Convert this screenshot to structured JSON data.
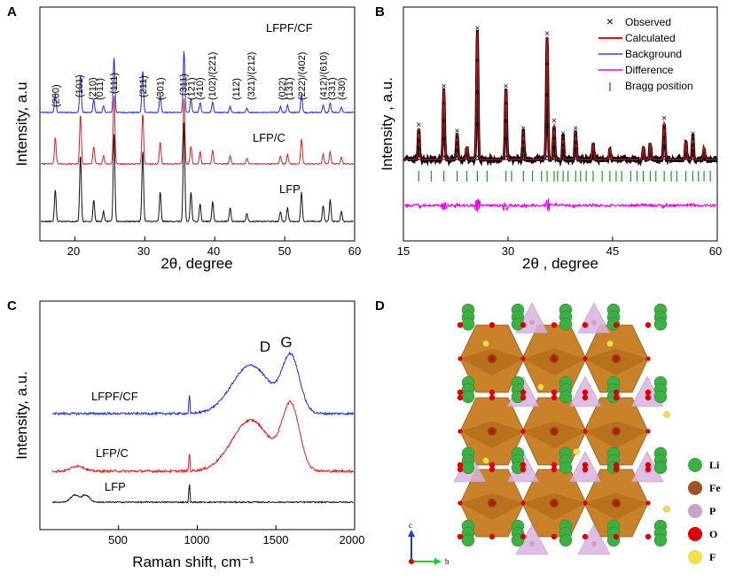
{
  "panel_labels": [
    "A",
    "B",
    "C",
    "D"
  ],
  "panelA": {
    "xlabel": "2θ, degree",
    "ylabel": "Intensity, a.u",
    "xticks": [
      "20",
      "30",
      "40",
      "50",
      "60"
    ],
    "sample_labels": [
      "LFPF/CF",
      "LFP/C",
      "LFP"
    ],
    "hkl_labels": [
      "(200)",
      "(101)",
      "(210)",
      "(011)",
      "(111)",
      "(211)",
      "(301)",
      "(311)",
      "(121)",
      "(410)",
      "(102)/(221)",
      "(112)",
      "(321)/(212)",
      "(022)",
      "(131)",
      "(222)/(402)",
      "(412)/(610)",
      "(331)",
      "(430)"
    ]
  },
  "panelB": {
    "xlabel": "2θ , degree",
    "ylabel": "Intensity , a.u.",
    "xticks": [
      "15",
      "30",
      "45",
      "60"
    ],
    "legend": [
      {
        "symbol": "×",
        "label": "Observed"
      },
      {
        "symbol": "line",
        "label": "Calculated"
      },
      {
        "symbol": "line",
        "label": "Background"
      },
      {
        "symbol": "line",
        "label": "Difference"
      },
      {
        "symbol": "bar",
        "label": "Bragg position"
      }
    ]
  },
  "panelC": {
    "xlabel": "Raman shift, cm⁻¹",
    "ylabel": "Intensity, a.u.",
    "xticks": [
      "500",
      "1000",
      "1500",
      "2000"
    ],
    "sample_labels": [
      "LFPF/CF",
      "LFP/C",
      "LFP"
    ],
    "band_labels": [
      "D",
      "G"
    ]
  },
  "panelD": {
    "atoms": [
      {
        "symbol": "Li",
        "color": "#3cb043"
      },
      {
        "symbol": "Fe",
        "color": "#a0522d"
      },
      {
        "symbol": "P",
        "color": "#c8a2c8"
      },
      {
        "symbol": "O",
        "color": "#dd0000"
      },
      {
        "symbol": "F",
        "color": "#f2e04b"
      }
    ],
    "axis_labels": [
      "c",
      "b"
    ]
  },
  "colors": {
    "blue": "#1f2de0",
    "red": "#e21f1f",
    "black": "#111111",
    "magenta": "#ee00ee",
    "green": "#1a9e1a",
    "calc": "#e01010",
    "bg": "#3344ee"
  },
  "chart_data": [
    {
      "type": "line",
      "title": "A",
      "xlabel": "2θ, degree",
      "ylabel": "Intensity, a.u",
      "xlim": [
        15,
        60
      ],
      "series": [
        {
          "name": "LFPF/CF",
          "color": "#1f2de0",
          "peaks": [
            [
              17.2,
              0.3
            ],
            [
              20.8,
              0.62
            ],
            [
              22.7,
              0.2
            ],
            [
              24.1,
              0.1
            ],
            [
              25.6,
              0.9
            ],
            [
              29.7,
              0.68
            ],
            [
              32.2,
              0.28
            ],
            [
              35.6,
              1.0
            ],
            [
              36.6,
              0.22
            ],
            [
              37.9,
              0.16
            ],
            [
              39.7,
              0.16
            ],
            [
              42.2,
              0.1
            ],
            [
              44.6,
              0.07
            ],
            [
              49.4,
              0.1
            ],
            [
              50.4,
              0.12
            ],
            [
              52.4,
              0.3
            ],
            [
              55.5,
              0.12
            ],
            [
              56.5,
              0.15
            ],
            [
              58.1,
              0.09
            ]
          ]
        },
        {
          "name": "LFP/C",
          "color": "#e21f1f",
          "peaks": [
            [
              17.2,
              0.38
            ],
            [
              20.8,
              0.72
            ],
            [
              22.7,
              0.25
            ],
            [
              24.1,
              0.12
            ],
            [
              25.6,
              1.0
            ],
            [
              29.7,
              0.74
            ],
            [
              32.2,
              0.32
            ],
            [
              35.6,
              0.95
            ],
            [
              36.6,
              0.26
            ],
            [
              37.9,
              0.18
            ],
            [
              39.7,
              0.2
            ],
            [
              42.2,
              0.12
            ],
            [
              44.6,
              0.08
            ],
            [
              49.4,
              0.12
            ],
            [
              50.4,
              0.14
            ],
            [
              52.4,
              0.36
            ],
            [
              55.5,
              0.14
            ],
            [
              56.5,
              0.18
            ],
            [
              58.1,
              0.1
            ]
          ]
        },
        {
          "name": "LFP",
          "color": "#111111",
          "peaks": [
            [
              17.2,
              0.32
            ],
            [
              20.8,
              0.68
            ],
            [
              22.7,
              0.22
            ],
            [
              24.1,
              0.1
            ],
            [
              25.6,
              0.9
            ],
            [
              29.7,
              0.72
            ],
            [
              32.2,
              0.3
            ],
            [
              35.6,
              1.0
            ],
            [
              36.6,
              0.3
            ],
            [
              37.9,
              0.18
            ],
            [
              39.7,
              0.2
            ],
            [
              42.2,
              0.14
            ],
            [
              44.6,
              0.08
            ],
            [
              49.4,
              0.1
            ],
            [
              50.4,
              0.14
            ],
            [
              52.4,
              0.3
            ],
            [
              55.5,
              0.16
            ],
            [
              56.5,
              0.22
            ],
            [
              58.1,
              0.1
            ]
          ]
        }
      ]
    },
    {
      "type": "line",
      "title": "B",
      "xlabel": "2θ , degree",
      "ylabel": "Intensity , a.u.",
      "xlim": [
        15,
        60
      ],
      "series": [
        {
          "name": "Calculated",
          "color": "#e01010",
          "peaks": [
            [
              17.2,
              0.25
            ],
            [
              20.8,
              0.55
            ],
            [
              22.7,
              0.2
            ],
            [
              24.1,
              0.1
            ],
            [
              25.6,
              1.0
            ],
            [
              29.7,
              0.55
            ],
            [
              32.2,
              0.22
            ],
            [
              35.6,
              0.96
            ],
            [
              36.6,
              0.28
            ],
            [
              37.9,
              0.18
            ],
            [
              39.7,
              0.22
            ],
            [
              42.2,
              0.12
            ],
            [
              44.6,
              0.08
            ],
            [
              49.4,
              0.1
            ],
            [
              50.4,
              0.13
            ],
            [
              52.4,
              0.3
            ],
            [
              55.5,
              0.14
            ],
            [
              56.5,
              0.18
            ],
            [
              58.1,
              0.1
            ]
          ]
        },
        {
          "name": "Bragg position",
          "color": "#1a9e1a",
          "x": [
            17.2,
            19.0,
            20.8,
            22.7,
            24.1,
            25.6,
            27.0,
            29.7,
            30.5,
            32.2,
            33.5,
            34.8,
            35.6,
            36.6,
            37.1,
            37.9,
            38.6,
            39.7,
            40.4,
            41.2,
            42.2,
            43.5,
            44.6,
            45.5,
            46.3,
            47.6,
            48.5,
            49.4,
            50.4,
            51.2,
            52.4,
            53.4,
            54.2,
            55.5,
            56.5,
            57.3,
            58.1,
            59.0
          ]
        },
        {
          "name": "Difference",
          "color": "#ee00ee"
        }
      ]
    },
    {
      "type": "line",
      "title": "C",
      "xlabel": "Raman shift, cm⁻¹",
      "ylabel": "Intensity, a.u.",
      "xlim": [
        0,
        2000
      ],
      "series": [
        {
          "name": "LFPF/CF",
          "color": "#1f2de0",
          "D_band": 1340,
          "G_band": 1595,
          "D_intensity": 0.88,
          "G_intensity": 1.0,
          "sharp_peak": 950
        },
        {
          "name": "LFP/C",
          "color": "#e21f1f",
          "D_band": 1340,
          "G_band": 1595,
          "D_intensity": 0.8,
          "G_intensity": 1.0,
          "sharp_peak": 950
        },
        {
          "name": "LFP",
          "color": "#111111",
          "sharp_peak": 950,
          "low_peaks": [
            220,
            290
          ]
        }
      ]
    }
  ]
}
